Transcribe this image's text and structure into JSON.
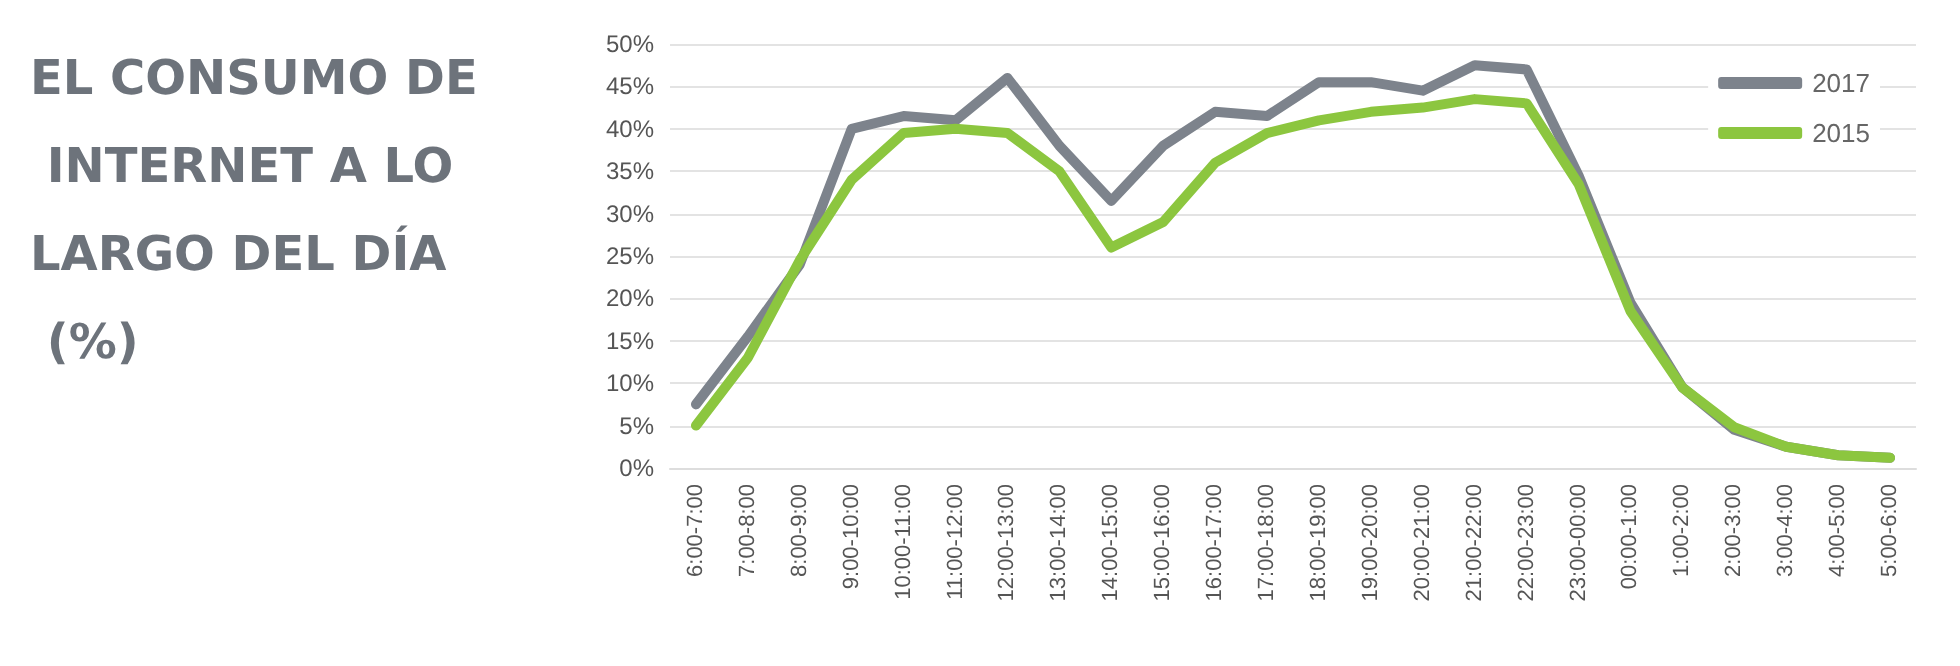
{
  "chart_data": {
    "type": "line",
    "title": "EL CONSUMO DE INTERNET A LO LARGO DEL DÍA (%)",
    "categories": [
      "6:00-7:00",
      "7:00-8:00",
      "8:00-9:00",
      "9:00-10:00",
      "10:00-11:00",
      "11:00-12:00",
      "12:00-13:00",
      "13:00-14:00",
      "14:00-15:00",
      "15:00-16:00",
      "16:00-17:00",
      "17:00-18:00",
      "18:00-19:00",
      "19:00-20:00",
      "20:00-21:00",
      "21:00-22:00",
      "22:00-23:00",
      "23:00-00:00",
      "00:00-1:00",
      "1:00-2:00",
      "2:00-3:00",
      "3:00-4:00",
      "4:00-5:00",
      "5:00-6:00"
    ],
    "series": [
      {
        "name": "2017",
        "color": "#7d838c",
        "values": [
          7.5,
          15.5,
          24,
          40,
          41.5,
          41,
          46,
          38,
          31.5,
          38,
          42,
          41.5,
          45.5,
          45.5,
          44.5,
          47.5,
          47,
          34.5,
          19.5,
          9.5,
          4.5,
          2.5,
          1.5,
          1.2
        ]
      },
      {
        "name": "2015",
        "color": "#8cc63f",
        "values": [
          5,
          13,
          24.5,
          34,
          39.5,
          40,
          39.5,
          35,
          26,
          29,
          36,
          39.5,
          41,
          42,
          42.5,
          43.5,
          43,
          33.5,
          18.5,
          9.5,
          4.8,
          2.5,
          1.5,
          1.2
        ]
      }
    ],
    "ylim": [
      0,
      50
    ],
    "yticks": [
      {
        "value": 0,
        "label": "0%"
      },
      {
        "value": 5,
        "label": "5%"
      },
      {
        "value": 10,
        "label": "10%"
      },
      {
        "value": 15,
        "label": "15%"
      },
      {
        "value": 20,
        "label": "20%"
      },
      {
        "value": 25,
        "label": "25%"
      },
      {
        "value": 30,
        "label": "30%"
      },
      {
        "value": 35,
        "label": "35%"
      },
      {
        "value": 40,
        "label": "40%"
      },
      {
        "value": 45,
        "label": "45%"
      },
      {
        "value": 50,
        "label": "50%"
      }
    ],
    "grid": "y",
    "legend": "top right",
    "marker": "none",
    "line_style": "solid"
  }
}
